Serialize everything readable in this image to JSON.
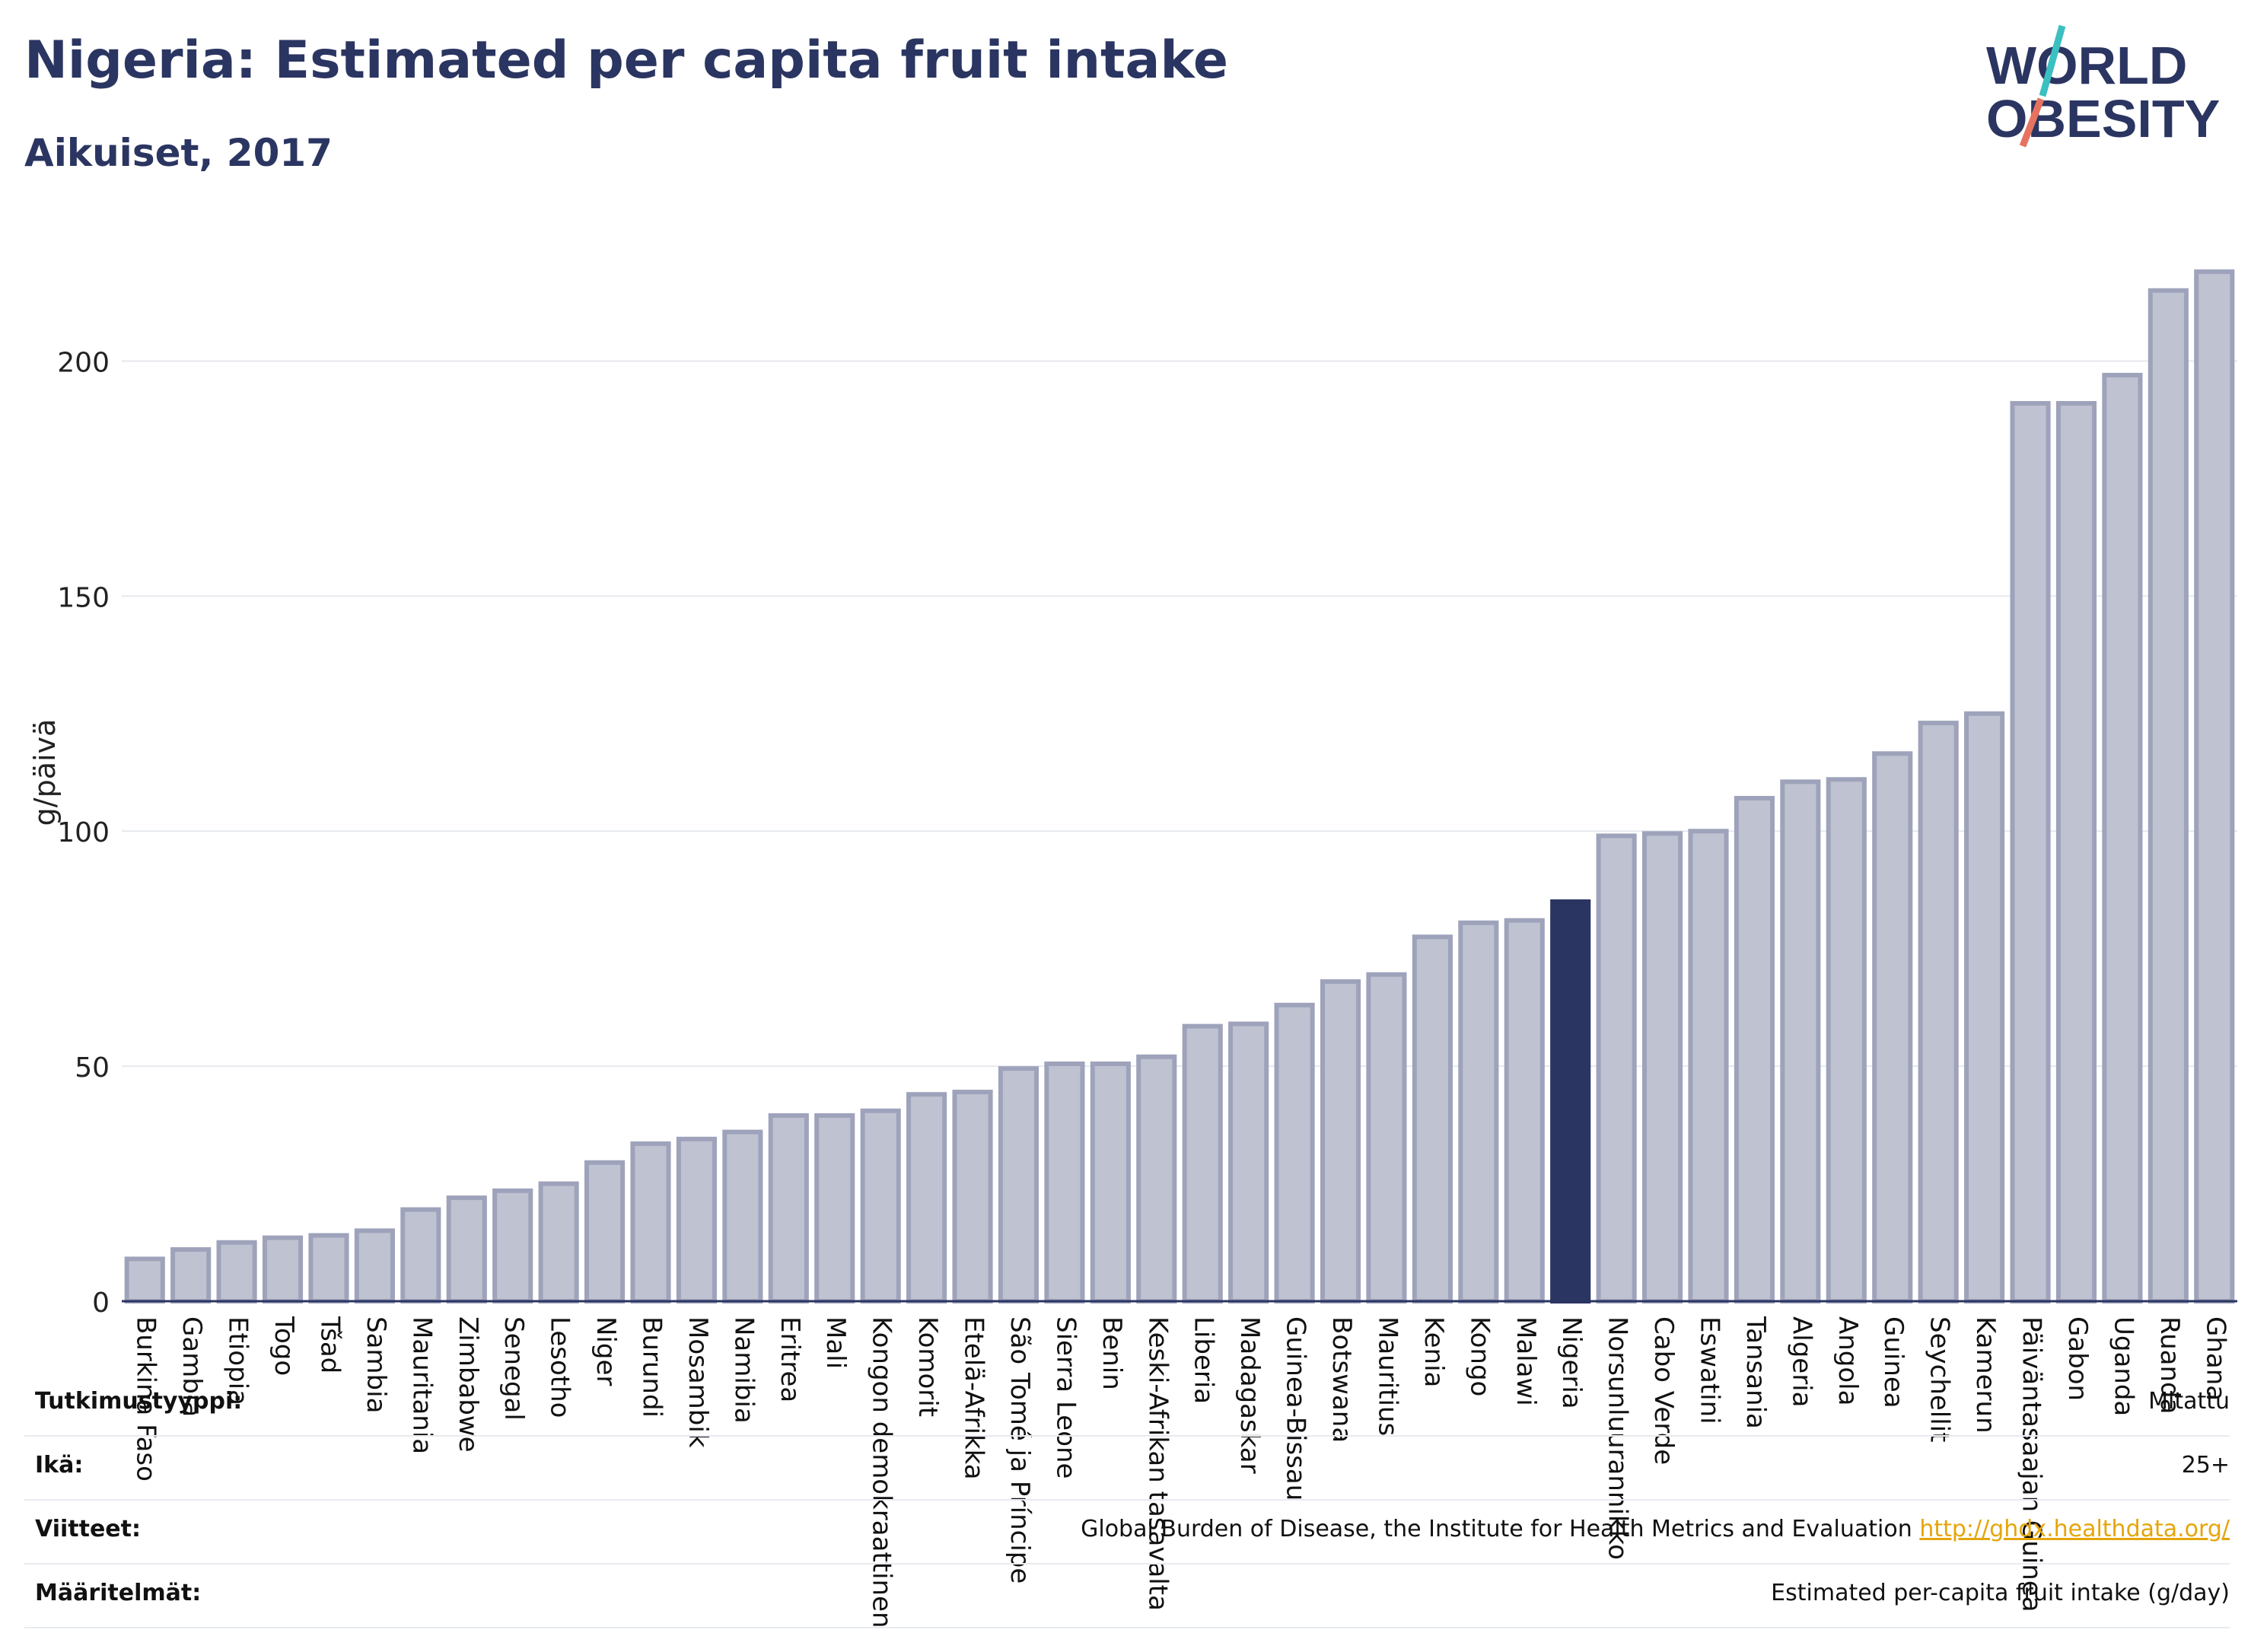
{
  "header": {
    "title": "Nigeria: Estimated per capita fruit intake",
    "subtitle": "Aikuiset, 2017"
  },
  "logo": {
    "line1": "WORLD",
    "line2": "OBESITY"
  },
  "colors": {
    "bar": "#bfc2d1",
    "bar_border": "#9ea3bb",
    "highlight": "#2b3561",
    "text": "#2b3561",
    "grid": "#e6e9ed"
  },
  "chart_data": {
    "type": "bar",
    "ylabel": "g/päivä",
    "ylim": [
      0,
      225
    ],
    "yticks": [
      0,
      50,
      100,
      150,
      200
    ],
    "highlight": "Nigeria",
    "categories": [
      "Burkina Faso",
      "Gambia",
      "Etiopia",
      "Togo",
      "Tšad",
      "Sambia",
      "Mauritania",
      "Zimbabwe",
      "Senegal",
      "Lesotho",
      "Niger",
      "Burundi",
      "Mosambik",
      "Namibia",
      "Eritrea",
      "Mali",
      "Kongon demokraattinen",
      "Komorit",
      "Etelä-Afrikka",
      "São Tomé ja Príncipe",
      "Sierra Leone",
      "Benin",
      "Keski-Afrikan tasavalta",
      "Liberia",
      "Madagaskar",
      "Guinea-Bissau",
      "Botswana",
      "Mauritius",
      "Kenia",
      "Kongo",
      "Malawi",
      "Nigeria",
      "Norsunluurannikko",
      "Cabo Verde",
      "Eswatini",
      "Tansania",
      "Algeria",
      "Angola",
      "Guinea",
      "Seychellit",
      "Kamerun",
      "Päiväntasaajan Guinea",
      "Gabon",
      "Uganda",
      "Ruanda",
      "Ghana"
    ],
    "values": [
      9,
      11,
      12.5,
      13.5,
      14,
      15,
      19.5,
      22,
      23.5,
      25,
      29.5,
      33.5,
      34.5,
      36,
      39.5,
      39.5,
      40.5,
      44,
      44.5,
      49.5,
      50.5,
      50.5,
      52,
      58.5,
      59,
      63,
      68,
      69.5,
      77.5,
      80.5,
      81,
      85,
      99,
      99.5,
      100,
      107,
      110.5,
      111,
      116.5,
      123,
      125,
      191,
      191,
      197,
      215,
      219
    ]
  },
  "info_rows": [
    {
      "label": "Tutkimustyyppi:",
      "value": "Mitattu"
    },
    {
      "label": "Ikä:",
      "value": "25+"
    },
    {
      "label": "Viitteet:",
      "value": "Global Burden of Disease, the Institute for Health Metrics and Evaluation",
      "link": "http://ghdx.healthdata.org/"
    },
    {
      "label": "Määritelmät:",
      "value": "Estimated per-capita fruit intake (g/day)"
    }
  ]
}
